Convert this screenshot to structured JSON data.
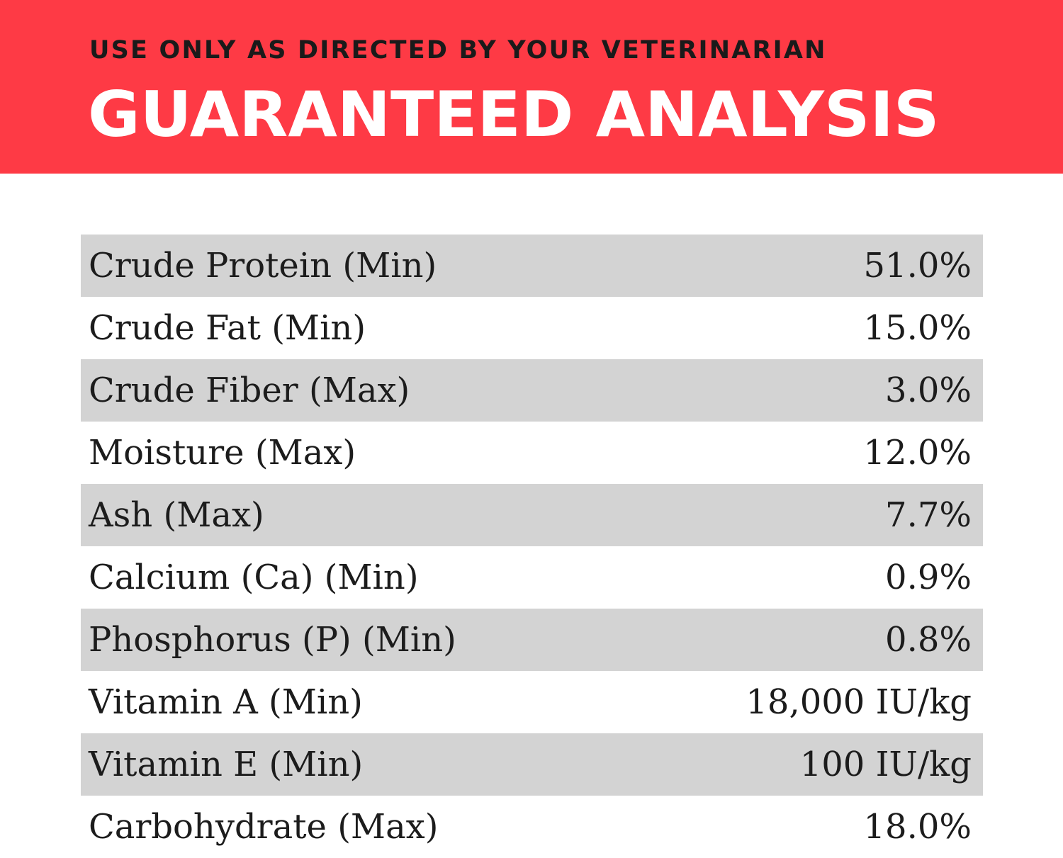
{
  "header": {
    "subtitle": "USE ONLY AS DIRECTED BY YOUR VETERINARIAN",
    "title": "GUARANTEED ANALYSIS",
    "background_color": "#fe3a45"
  },
  "analysis": {
    "rows": [
      {
        "label": "Crude Protein (Min)",
        "value": "51.0%"
      },
      {
        "label": "Crude Fat (Min)",
        "value": "15.0%"
      },
      {
        "label": "Crude Fiber (Max)",
        "value": "3.0%"
      },
      {
        "label": "Moisture (Max)",
        "value": "12.0%"
      },
      {
        "label": "Ash (Max)",
        "value": "7.7%"
      },
      {
        "label": "Calcium (Ca) (Min)",
        "value": "0.9%"
      },
      {
        "label": "Phosphorus (P) (Min)",
        "value": "0.8%"
      },
      {
        "label": "Vitamin A (Min)",
        "value": "18,000 IU/kg"
      },
      {
        "label": "Vitamin E (Min)",
        "value": "100 IU/kg"
      },
      {
        "label": "Carbohydrate (Max)",
        "value": "18.0%"
      }
    ],
    "shaded_row_color": "#d3d3d3"
  }
}
